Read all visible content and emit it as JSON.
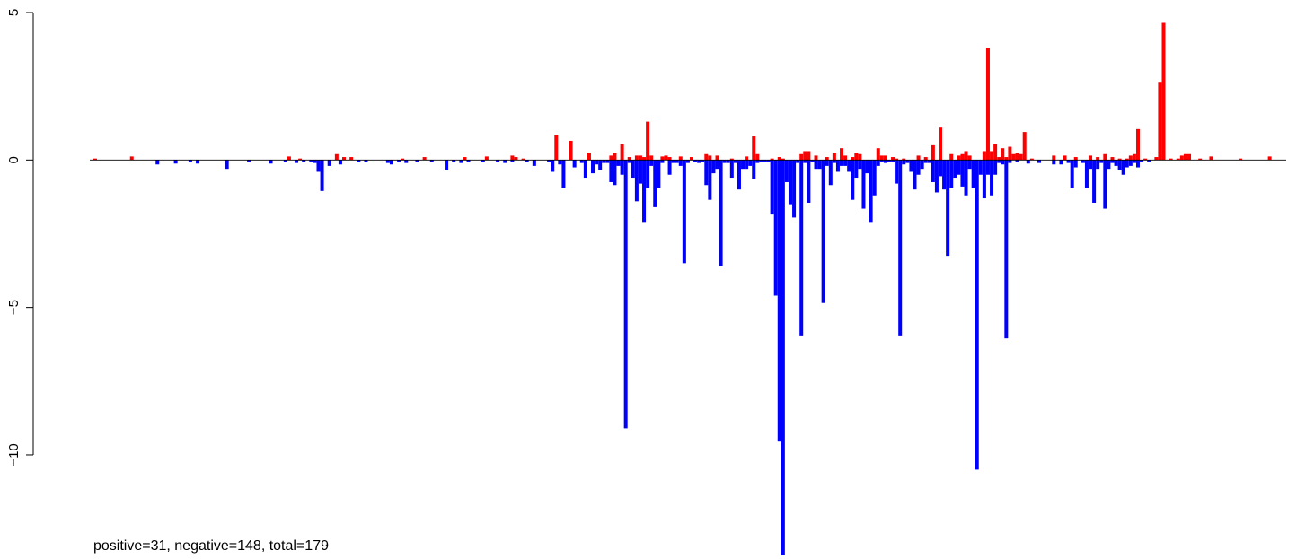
{
  "chart_data": {
    "type": "bar",
    "title": "",
    "xlabel": "",
    "ylabel": "",
    "ylim": [
      -13.5,
      5
    ],
    "yticks": [
      {
        "value": 5,
        "label": "5"
      },
      {
        "value": 0,
        "label": "0"
      },
      {
        "value": -5,
        "label": "−5"
      },
      {
        "value": -10,
        "label": "−10"
      }
    ],
    "colors": {
      "positive": "#ff0000",
      "negative": "#0000ff",
      "baseline": "#000000"
    },
    "bar_count": 298,
    "positive_bars": [
      [
        0,
        0.05
      ],
      [
        10,
        0.12
      ],
      [
        53,
        0.12
      ],
      [
        56,
        0.05
      ],
      [
        66,
        0.2
      ],
      [
        68,
        0.1
      ],
      [
        70,
        0.1
      ],
      [
        84,
        0.05
      ],
      [
        90,
        0.1
      ],
      [
        101,
        0.1
      ],
      [
        107,
        0.12
      ],
      [
        115,
        0.1
      ],
      [
        117,
        0.05
      ],
      [
        114,
        0.15
      ],
      [
        126,
        0.85
      ],
      [
        130,
        0.65
      ],
      [
        135,
        0.25
      ],
      [
        141,
        0.15
      ],
      [
        142,
        0.25
      ],
      [
        144,
        0.55
      ],
      [
        146,
        0.1
      ],
      [
        148,
        0.15
      ],
      [
        149,
        0.15
      ],
      [
        150,
        0.1
      ],
      [
        151,
        1.3
      ],
      [
        152,
        0.15
      ],
      [
        155,
        0.12
      ],
      [
        156,
        0.15
      ],
      [
        157,
        0.1
      ],
      [
        160,
        0.12
      ],
      [
        163,
        0.1
      ],
      [
        167,
        0.2
      ],
      [
        168,
        0.15
      ],
      [
        170,
        0.15
      ],
      [
        174,
        0.05
      ],
      [
        178,
        0.12
      ],
      [
        180,
        0.8
      ],
      [
        181,
        0.2
      ],
      [
        185,
        0.05
      ],
      [
        187,
        0.1
      ],
      [
        188,
        0.05
      ],
      [
        193,
        0.2
      ],
      [
        194,
        0.3
      ],
      [
        195,
        0.3
      ],
      [
        197,
        0.15
      ],
      [
        200,
        0.1
      ],
      [
        202,
        0.25
      ],
      [
        204,
        0.4
      ],
      [
        205,
        0.15
      ],
      [
        207,
        0.1
      ],
      [
        208,
        0.25
      ],
      [
        209,
        0.2
      ],
      [
        214,
        0.4
      ],
      [
        215,
        0.15
      ],
      [
        216,
        0.15
      ],
      [
        218,
        0.1
      ],
      [
        219,
        0.05
      ],
      [
        221,
        0.05
      ],
      [
        225,
        0.15
      ],
      [
        227,
        0.1
      ],
      [
        229,
        0.5
      ],
      [
        231,
        1.1
      ],
      [
        234,
        0.2
      ],
      [
        236,
        0.15
      ],
      [
        237,
        0.2
      ],
      [
        238,
        0.3
      ],
      [
        239,
        0.15
      ],
      [
        243,
        0.3
      ],
      [
        244,
        3.8
      ],
      [
        245,
        0.3
      ],
      [
        246,
        0.55
      ],
      [
        247,
        0.1
      ],
      [
        248,
        0.4
      ],
      [
        249,
        0.1
      ],
      [
        250,
        0.45
      ],
      [
        251,
        0.2
      ],
      [
        252,
        0.25
      ],
      [
        253,
        0.2
      ],
      [
        254,
        0.95
      ],
      [
        256,
        0.05
      ],
      [
        262,
        0.15
      ],
      [
        265,
        0.15
      ],
      [
        268,
        0.1
      ],
      [
        272,
        0.15
      ],
      [
        274,
        0.1
      ],
      [
        276,
        0.2
      ],
      [
        278,
        0.1
      ],
      [
        280,
        0.05
      ],
      [
        282,
        0.05
      ],
      [
        283,
        0.15
      ],
      [
        284,
        0.2
      ],
      [
        285,
        1.05
      ],
      [
        287,
        0.05
      ],
      [
        290,
        0.1
      ],
      [
        291,
        2.65
      ],
      [
        292,
        4.65
      ],
      [
        294,
        0.05
      ],
      [
        296,
        0.05
      ],
      [
        297,
        0.15
      ],
      [
        298,
        0.2
      ],
      [
        299,
        0.2
      ],
      [
        302,
        0.05
      ],
      [
        305,
        0.12
      ],
      [
        313,
        0.05
      ],
      [
        321,
        0.12
      ]
    ],
    "negative_bars": [
      [
        17,
        -0.15
      ],
      [
        22,
        -0.12
      ],
      [
        26,
        -0.05
      ],
      [
        28,
        -0.12
      ],
      [
        36,
        -0.3
      ],
      [
        42,
        -0.05
      ],
      [
        48,
        -0.12
      ],
      [
        52,
        -0.05
      ],
      [
        55,
        -0.1
      ],
      [
        57,
        -0.05
      ],
      [
        59,
        -0.05
      ],
      [
        60,
        -0.1
      ],
      [
        61,
        -0.4
      ],
      [
        62,
        -1.05
      ],
      [
        64,
        -0.2
      ],
      [
        67,
        -0.15
      ],
      [
        72,
        -0.05
      ],
      [
        74,
        -0.05
      ],
      [
        80,
        -0.1
      ],
      [
        81,
        -0.15
      ],
      [
        83,
        -0.05
      ],
      [
        85,
        -0.1
      ],
      [
        88,
        -0.05
      ],
      [
        92,
        -0.05
      ],
      [
        96,
        -0.35
      ],
      [
        98,
        -0.05
      ],
      [
        100,
        -0.1
      ],
      [
        102,
        -0.05
      ],
      [
        106,
        -0.05
      ],
      [
        110,
        -0.05
      ],
      [
        112,
        -0.1
      ],
      [
        114,
        -0.05
      ],
      [
        118,
        -0.05
      ],
      [
        120,
        -0.2
      ],
      [
        124,
        -0.05
      ],
      [
        125,
        -0.4
      ],
      [
        127,
        -0.15
      ],
      [
        128,
        -0.95
      ],
      [
        131,
        -0.25
      ],
      [
        133,
        -0.1
      ],
      [
        134,
        -0.6
      ],
      [
        136,
        -0.45
      ],
      [
        137,
        -0.15
      ],
      [
        138,
        -0.35
      ],
      [
        139,
        -0.1
      ],
      [
        140,
        -0.1
      ],
      [
        141,
        -0.75
      ],
      [
        142,
        -0.85
      ],
      [
        143,
        -0.2
      ],
      [
        144,
        -0.5
      ],
      [
        145,
        -9.1
      ],
      [
        146,
        -0.1
      ],
      [
        147,
        -0.6
      ],
      [
        148,
        -1.4
      ],
      [
        149,
        -0.8
      ],
      [
        150,
        -2.1
      ],
      [
        151,
        -0.95
      ],
      [
        152,
        -0.2
      ],
      [
        153,
        -1.6
      ],
      [
        154,
        -0.95
      ],
      [
        155,
        -0.1
      ],
      [
        157,
        -0.5
      ],
      [
        158,
        -0.1
      ],
      [
        159,
        -0.1
      ],
      [
        160,
        -0.2
      ],
      [
        161,
        -3.5
      ],
      [
        162,
        -0.1
      ],
      [
        164,
        -0.05
      ],
      [
        165,
        -0.1
      ],
      [
        166,
        -0.05
      ],
      [
        167,
        -0.85
      ],
      [
        168,
        -1.35
      ],
      [
        169,
        -0.45
      ],
      [
        170,
        -0.3
      ],
      [
        171,
        -3.6
      ],
      [
        172,
        -0.1
      ],
      [
        173,
        -0.1
      ],
      [
        174,
        -0.6
      ],
      [
        175,
        -0.1
      ],
      [
        176,
        -1.0
      ],
      [
        177,
        -0.3
      ],
      [
        178,
        -0.3
      ],
      [
        179,
        -0.2
      ],
      [
        180,
        -0.65
      ],
      [
        181,
        -0.1
      ],
      [
        182,
        -0.05
      ],
      [
        183,
        -0.05
      ],
      [
        184,
        -0.05
      ],
      [
        185,
        -1.85
      ],
      [
        186,
        -4.6
      ],
      [
        187,
        -9.55
      ],
      [
        188,
        -13.4
      ],
      [
        189,
        -0.75
      ],
      [
        190,
        -1.5
      ],
      [
        191,
        -1.95
      ],
      [
        192,
        -0.1
      ],
      [
        193,
        -5.95
      ],
      [
        194,
        -0.1
      ],
      [
        195,
        -1.45
      ],
      [
        196,
        -0.05
      ],
      [
        197,
        -0.3
      ],
      [
        198,
        -0.3
      ],
      [
        199,
        -4.85
      ],
      [
        200,
        -0.2
      ],
      [
        201,
        -0.85
      ],
      [
        202,
        -0.1
      ],
      [
        203,
        -0.4
      ],
      [
        204,
        -0.2
      ],
      [
        205,
        -0.2
      ],
      [
        206,
        -0.4
      ],
      [
        207,
        -1.35
      ],
      [
        208,
        -0.6
      ],
      [
        209,
        -0.3
      ],
      [
        210,
        -1.65
      ],
      [
        211,
        -0.45
      ],
      [
        212,
        -2.1
      ],
      [
        213,
        -1.2
      ],
      [
        214,
        -0.2
      ],
      [
        215,
        -0.05
      ],
      [
        216,
        -0.1
      ],
      [
        217,
        -0.05
      ],
      [
        218,
        -0.05
      ],
      [
        219,
        -0.8
      ],
      [
        220,
        -5.95
      ],
      [
        221,
        -0.15
      ],
      [
        222,
        -0.1
      ],
      [
        223,
        -0.4
      ],
      [
        224,
        -1.0
      ],
      [
        225,
        -0.5
      ],
      [
        226,
        -0.3
      ],
      [
        227,
        -0.1
      ],
      [
        228,
        -0.1
      ],
      [
        229,
        -0.75
      ],
      [
        230,
        -1.1
      ],
      [
        231,
        -0.55
      ],
      [
        232,
        -1.0
      ],
      [
        233,
        -3.25
      ],
      [
        234,
        -0.95
      ],
      [
        235,
        -0.6
      ],
      [
        236,
        -0.5
      ],
      [
        237,
        -0.9
      ],
      [
        238,
        -1.2
      ],
      [
        239,
        -0.3
      ],
      [
        240,
        -0.95
      ],
      [
        241,
        -10.5
      ],
      [
        242,
        -0.5
      ],
      [
        243,
        -1.3
      ],
      [
        244,
        -0.5
      ],
      [
        245,
        -1.2
      ],
      [
        246,
        -0.5
      ],
      [
        247,
        -0.1
      ],
      [
        248,
        -0.15
      ],
      [
        249,
        -6.05
      ],
      [
        250,
        -0.1
      ],
      [
        252,
        -0.05
      ],
      [
        255,
        -0.12
      ],
      [
        258,
        -0.1
      ],
      [
        262,
        -0.15
      ],
      [
        264,
        -0.15
      ],
      [
        266,
        -0.1
      ],
      [
        267,
        -0.95
      ],
      [
        268,
        -0.25
      ],
      [
        270,
        -0.1
      ],
      [
        271,
        -0.95
      ],
      [
        272,
        -0.3
      ],
      [
        273,
        -1.45
      ],
      [
        274,
        -0.3
      ],
      [
        275,
        -0.1
      ],
      [
        276,
        -1.65
      ],
      [
        277,
        -0.3
      ],
      [
        278,
        -0.1
      ],
      [
        279,
        -0.2
      ],
      [
        280,
        -0.35
      ],
      [
        281,
        -0.5
      ],
      [
        282,
        -0.25
      ],
      [
        283,
        -0.2
      ],
      [
        284,
        -0.1
      ],
      [
        285,
        -0.25
      ],
      [
        286,
        -0.05
      ],
      [
        288,
        -0.05
      ]
    ]
  },
  "caption": "positive=31, negative=148, total=179"
}
